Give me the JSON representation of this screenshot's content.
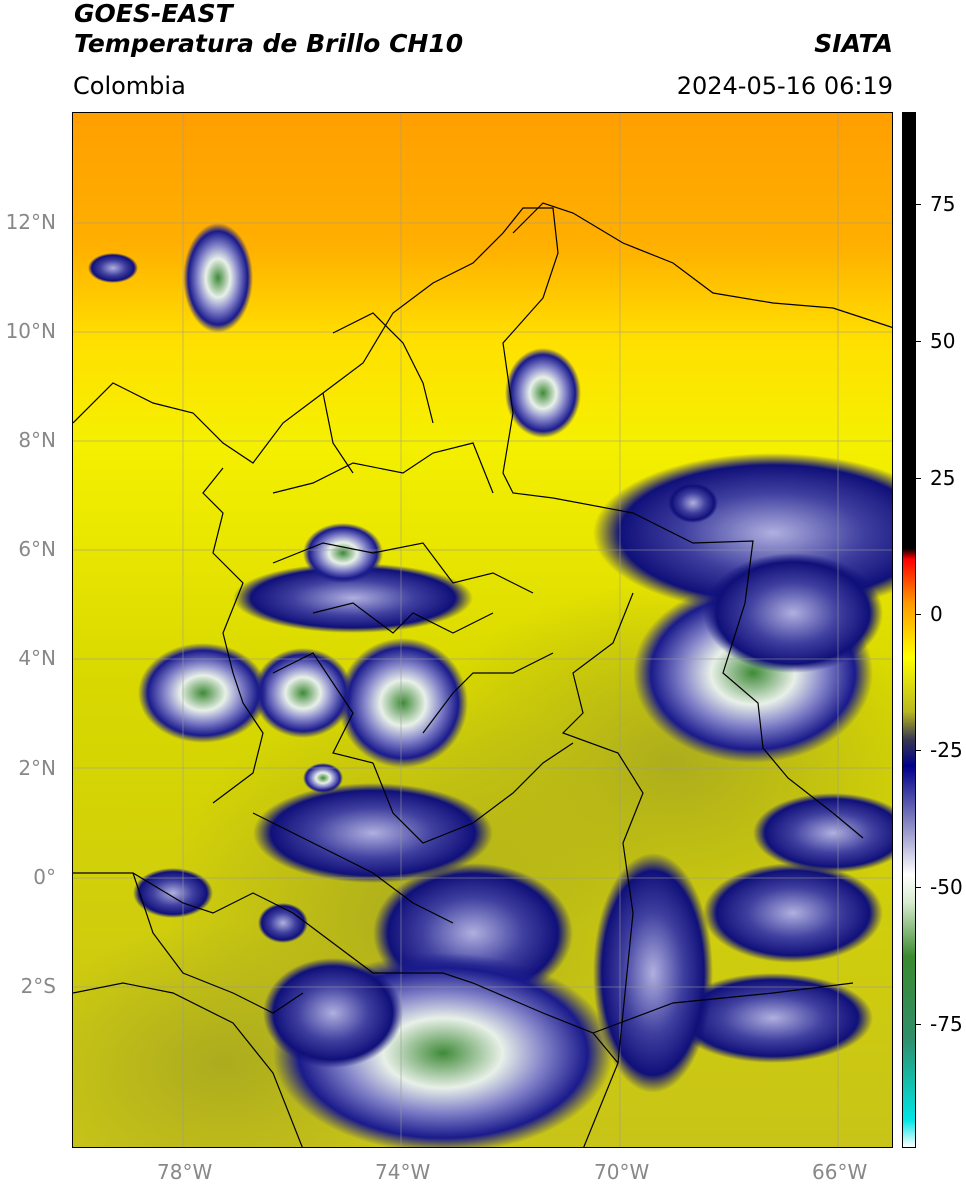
{
  "header": {
    "satellite": "GOES-EAST",
    "product": "Temperatura de Brillo CH10",
    "region": "Colombia",
    "agency": "SIATA",
    "datetime": "2024-05-16 06:19"
  },
  "map": {
    "lat_labels": [
      "12°N",
      "10°N",
      "8°N",
      "6°N",
      "4°N",
      "2°N",
      "0°",
      "2°S"
    ],
    "lon_labels": [
      "78°W",
      "74°W",
      "70°W",
      "66°W"
    ],
    "lon_range": [
      -80,
      -65
    ],
    "lat_range": [
      -5,
      14
    ]
  },
  "colorbar": {
    "range": [
      -100,
      90
    ],
    "tick_labels": [
      "75",
      "50",
      "25",
      "0",
      "-25",
      "-50",
      "-75"
    ],
    "stops": [
      {
        "v": -100,
        "c": "#ffffff"
      },
      {
        "v": -95,
        "c": "#00e5e5"
      },
      {
        "v": -80,
        "c": "#2f8f6a"
      },
      {
        "v": -65,
        "c": "#3a8a2e"
      },
      {
        "v": -55,
        "c": "#d8ecd0"
      },
      {
        "v": -50,
        "c": "#ffffff"
      },
      {
        "v": -40,
        "c": "#8080c0"
      },
      {
        "v": -30,
        "c": "#00008b"
      },
      {
        "v": -25,
        "c": "#3a3a50"
      },
      {
        "v": -20,
        "c": "#b8b820"
      },
      {
        "v": -10,
        "c": "#ffff00"
      },
      {
        "v": 0,
        "c": "#ff9900"
      },
      {
        "v": 8,
        "c": "#ff0000"
      },
      {
        "v": 10,
        "c": "#000000"
      },
      {
        "v": 90,
        "c": "#000000"
      }
    ]
  }
}
